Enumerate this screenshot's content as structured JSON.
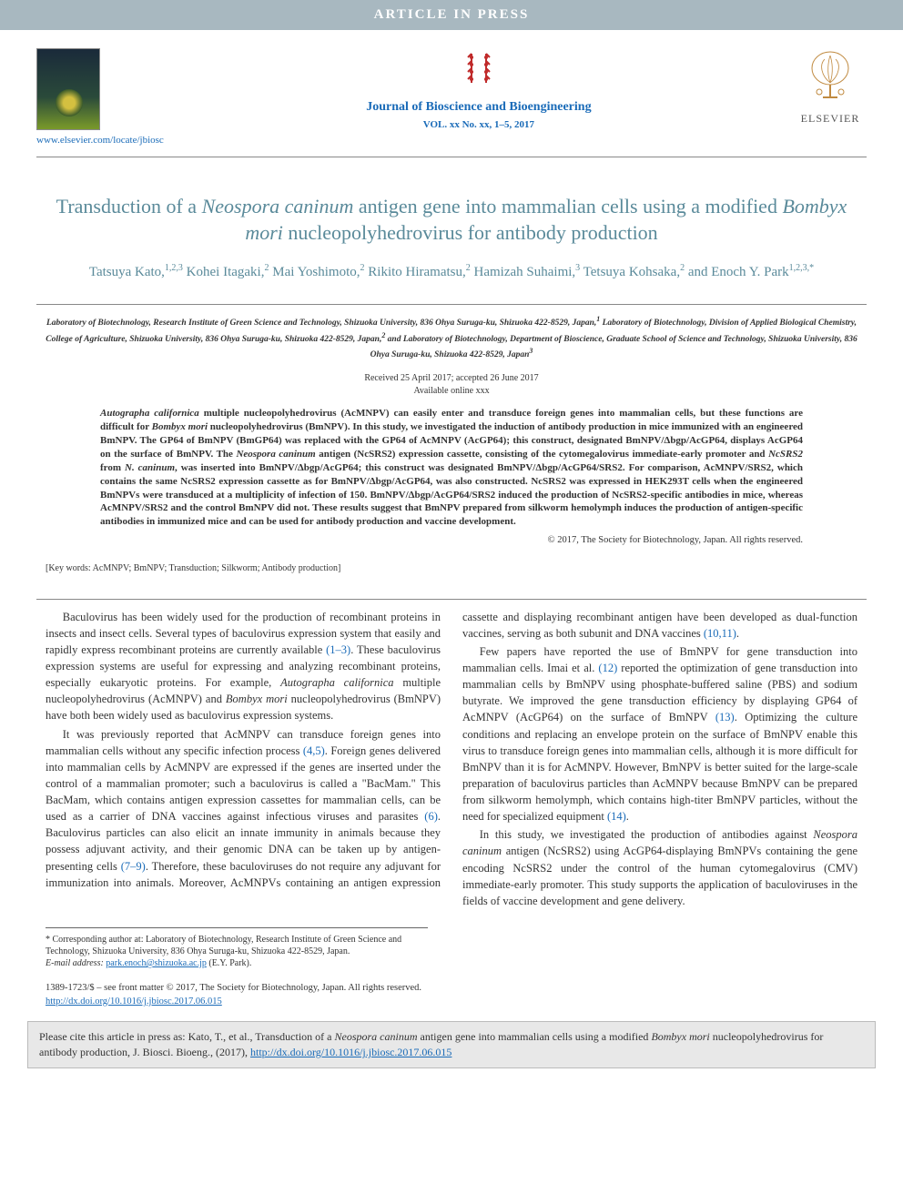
{
  "banner": {
    "text": "ARTICLE IN PRESS"
  },
  "header": {
    "journal_link": "www.elsevier.com/locate/jbiosc",
    "journal_name": "Journal of Bioscience and Bioengineering",
    "journal_issue": "VOL. xx No. xx, 1–5, 2017",
    "publisher": "ELSEVIER"
  },
  "title_parts": {
    "p1": "Transduction of a ",
    "sp1": "Neospora caninum",
    "p2": " antigen gene into mammalian cells using a modified ",
    "sp2": "Bombyx mori",
    "p3": " nucleopolyhedrovirus for antibody production"
  },
  "authors_html": "Tatsuya Kato,<sup>1,2,3</sup> Kohei Itagaki,<sup>2</sup> Mai Yoshimoto,<sup>2</sup> Rikito Hiramatsu,<sup>2</sup> Hamizah Suhaimi,<sup>3</sup> Tetsuya Kohsaka,<sup>2</sup> and Enoch Y. Park<sup>1,2,3,*</sup>",
  "affiliations_html": "Laboratory of Biotechnology, Research Institute of Green Science and Technology, Shizuoka University, 836 Ohya Suruga-ku, Shizuoka 422-8529, Japan,<sup>1</sup> Laboratory of Biotechnology, Division of Applied Biological Chemistry, College of Agriculture, Shizuoka University, 836 Ohya Suruga-ku, Shizuoka 422-8529, Japan,<sup>2</sup> and Laboratory of Biotechnology, Department of Bioscience, Graduate School of Science and Technology, Shizuoka University, 836 Ohya Suruga-ku, Shizuoka 422-8529, Japan<sup>3</sup>",
  "dates": {
    "received": "Received 25 April 2017; accepted 26 June 2017",
    "online": "Available online xxx"
  },
  "abstract_html": "<em>Autographa californica</em> multiple nucleopolyhedrovirus (AcMNPV) can easily enter and transduce foreign genes into mammalian cells, but these functions are difficult for <em>Bombyx mori</em> nucleopolyhedrovirus (BmNPV). In this study, we investigated the induction of antibody production in mice immunized with an engineered BmNPV. The GP64 of BmNPV (BmGP64) was replaced with the GP64 of AcMNPV (AcGP64); this construct, designated BmNPV/Δbgp/AcGP64, displays AcGP64 on the surface of BmNPV. The <em>Neospora caninum</em> antigen (NcSRS2) expression cassette, consisting of the cytomegalovirus immediate-early promoter and <em>NcSRS2</em> from <em>N. caninum</em>, was inserted into BmNPV/Δbgp/AcGP64; this construct was designated BmNPV/Δbgp/AcGP64/SRS2. For comparison, AcMNPV/SRS2, which contains the same NcSRS2 expression cassette as for BmNPV/Δbgp/AcGP64, was also constructed. NcSRS2 was expressed in HEK293T cells when the engineered BmNPVs were transduced at a multiplicity of infection of 150. BmNPV/Δbgp/AcGP64/SRS2 induced the production of NcSRS2-specific antibodies in mice, whereas AcMNPV/SRS2 and the control BmNPV did not. These results suggest that BmNPV prepared from silkworm hemolymph induces the production of antigen-specific antibodies in immunized mice and can be used for antibody production and vaccine development.",
  "copyright": "© 2017, The Society for Biotechnology, Japan. All rights reserved.",
  "keywords": "[Key words: AcMNPV; BmNPV; Transduction; Silkworm; Antibody production]",
  "body": {
    "p1_html": "Baculovirus has been widely used for the production of recombinant proteins in insects and insect cells. Several types of baculovirus expression system that easily and rapidly express recombinant proteins are currently available <span class=\"ref-link\">(1–3)</span>. These baculovirus expression systems are useful for expressing and analyzing recombinant proteins, especially eukaryotic proteins. For example, <em>Autographa californica</em> multiple nucleopolyhedrovirus (AcMNPV) and <em>Bombyx mori</em> nucleopolyhedrovirus (BmNPV) have both been widely used as baculovirus expression systems.",
    "p2_html": "It was previously reported that AcMNPV can transduce foreign genes into mammalian cells without any specific infection process <span class=\"ref-link\">(4,5)</span>. Foreign genes delivered into mammalian cells by AcMNPV are expressed if the genes are inserted under the control of a mammalian promoter; such a baculovirus is called a \"BacMam.\" This BacMam, which contains antigen expression cassettes for mammalian cells, can be used as a carrier of DNA vaccines against infectious viruses and parasites <span class=\"ref-link\">(6)</span>. Baculovirus particles can also elicit an innate immunity in animals because they possess adjuvant activity, and their genomic DNA can be taken up by antigen-presenting cells <span class=\"ref-link\">(7–9)</span>. Therefore, these baculoviruses do not require any adjuvant for immunization into animals. Moreover, AcMNPVs containing an antigen expression cassette and displaying recombinant antigen have been developed as dual-function vaccines, serving as both subunit and DNA vaccines <span class=\"ref-link\">(10,11)</span>.",
    "p3_html": "Few papers have reported the use of BmNPV for gene transduction into mammalian cells. Imai et al. <span class=\"ref-link\">(12)</span> reported the optimization of gene transduction into mammalian cells by BmNPV using phosphate-buffered saline (PBS) and sodium butyrate. We improved the gene transduction efficiency by displaying GP64 of AcMNPV (AcGP64) on the surface of BmNPV <span class=\"ref-link\">(13)</span>. Optimizing the culture conditions and replacing an envelope protein on the surface of BmNPV enable this virus to transduce foreign genes into mammalian cells, although it is more difficult for BmNPV than it is for AcMNPV. However, BmNPV is better suited for the large-scale preparation of baculovirus particles than AcMNPV because BmNPV can be prepared from silkworm hemolymph, which contains high-titer BmNPV particles, without the need for specialized equipment <span class=\"ref-link\">(14)</span>.",
    "p4_html": "In this study, we investigated the production of antibodies against <em>Neospora caninum</em> antigen (NcSRS2) using AcGP64-displaying BmNPVs containing the gene encoding NcSRS2 under the control of the human cytomegalovirus (CMV) immediate-early promoter. This study supports the application of baculoviruses in the fields of vaccine development and gene delivery."
  },
  "footnotes": {
    "corresponding": "* Corresponding author at: Laboratory of Biotechnology, Research Institute of Green Science and Technology, Shizuoka University, 836 Ohya Suruga-ku, Shizuoka 422-8529, Japan.",
    "email_label": "E-mail address:",
    "email": "park.enoch@shizuoka.ac.jp",
    "email_who": "(E.Y. Park)."
  },
  "doi": {
    "front_matter": "1389-1723/$ – see front matter © 2017, The Society for Biotechnology, Japan. All rights reserved.",
    "link": "http://dx.doi.org/10.1016/j.jbiosc.2017.06.015"
  },
  "citation_box_html": "Please cite this article in press as: Kato, T., et al., Transduction of a <em>Neospora caninum</em> antigen gene into mammalian cells using a modified <em>Bombyx mori</em> nucleopolyhedrovirus for antibody production, J. Biosci. Bioeng., (2017), <a href=\"#\">http://dx.doi.org/10.1016/j.jbiosc.2017.06.015</a>",
  "colors": {
    "banner_bg": "#a8b8c0",
    "link": "#1a6bb8",
    "title": "#5a8a9a",
    "cite_bg": "#e8e8e8"
  }
}
